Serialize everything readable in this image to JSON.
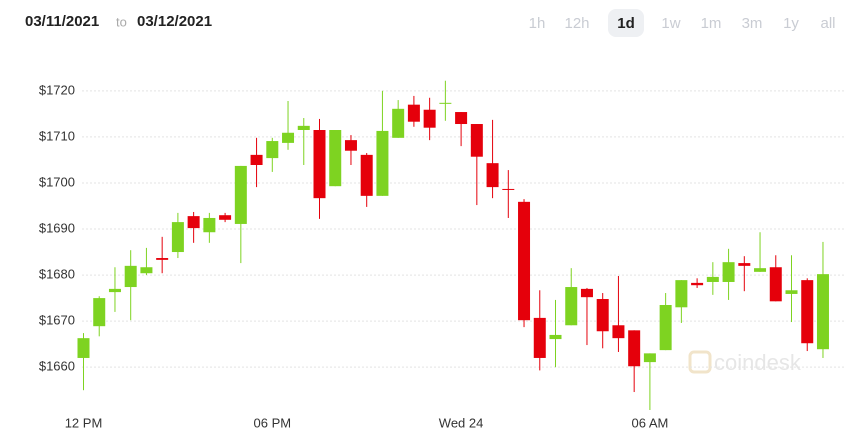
{
  "header": {
    "from": "03/11/2021",
    "separator": "to",
    "to": "03/12/2021",
    "ranges": [
      "1h",
      "12h",
      "1d",
      "1w",
      "1m",
      "3m",
      "1y",
      "all"
    ],
    "active_range": 2
  },
  "watermark": "coindesk",
  "chart_data": {
    "type": "candlestick",
    "x": [
      0,
      0.5,
      1,
      1.5,
      2,
      2.5,
      3,
      3.5,
      4,
      4.5,
      5,
      5.5,
      6,
      6.5,
      7,
      7.5,
      8,
      8.5,
      9,
      9.5,
      10,
      10.5,
      11,
      11.5,
      12,
      12.5,
      13,
      13.5,
      14,
      14.5,
      15,
      15.5,
      16,
      16.5,
      17,
      17.5,
      18,
      18.5,
      19,
      19.5,
      20,
      20.5,
      21,
      21.5,
      22,
      22.5,
      23,
      23.5
    ],
    "open": [
      1662,
      1668.9,
      1676.3,
      1677.4,
      1680.4,
      1683.7,
      1685,
      1692.8,
      1689.3,
      1693,
      1691.1,
      1706.1,
      1705.4,
      1708.7,
      1711.5,
      1711.5,
      1699.3,
      1709.3,
      1706.1,
      1697.2,
      1709.8,
      1717,
      1715.9,
      1717.2,
      1715.4,
      1712.8,
      1704.3,
      1698.7,
      1695.9,
      1670.7,
      1666.1,
      1669.1,
      1677,
      1674.8,
      1669.1,
      1668,
      1661.1,
      1663.7,
      1673,
      1678.3,
      1678.5,
      1678.5,
      1682.6,
      1680.7,
      1681.7,
      1675.9,
      1678.9,
      1663.9
    ],
    "high": [
      1667.4,
      1675.4,
      1681.7,
      1685.4,
      1685.9,
      1688.3,
      1693.5,
      1693.7,
      1693.5,
      1693.5,
      1703.7,
      1709.8,
      1709.8,
      1717.8,
      1714.1,
      1713.9,
      1711.5,
      1710.4,
      1706.5,
      1720,
      1718,
      1718.9,
      1718.5,
      1722.2,
      1715.4,
      1712.8,
      1713.7,
      1702.8,
      1696.5,
      1676.7,
      1674.6,
      1681.5,
      1677.2,
      1676.1,
      1679.8,
      1668,
      1663,
      1676.1,
      1678.9,
      1679.3,
      1682.8,
      1685.7,
      1684.1,
      1689.3,
      1684.3,
      1684.3,
      1679.3,
      1687.2
    ],
    "low": [
      1655,
      1666.7,
      1672,
      1670.2,
      1680,
      1680.4,
      1683.7,
      1687,
      1687,
      1691.5,
      1682.6,
      1699.1,
      1702.4,
      1707.2,
      1703.9,
      1692.2,
      1699.3,
      1703.9,
      1694.8,
      1697.2,
      1709.8,
      1712.2,
      1709.3,
      1713.5,
      1708,
      1695.2,
      1696.7,
      1692.4,
      1668.7,
      1659.3,
      1660,
      1669.1,
      1664.8,
      1664.1,
      1663.3,
      1654.6,
      1650.7,
      1663.7,
      1669.6,
      1677.2,
      1675.7,
      1674.6,
      1676.5,
      1680.7,
      1674.3,
      1669.8,
      1663.5,
      1662
    ],
    "close": [
      1666.3,
      1675,
      1677,
      1682,
      1681.7,
      1683.3,
      1691.5,
      1690.2,
      1692.4,
      1692,
      1703.7,
      1703.9,
      1709.1,
      1710.9,
      1712.4,
      1696.7,
      1711.5,
      1707,
      1697.2,
      1711.3,
      1716.1,
      1713.3,
      1712,
      1717.4,
      1712.8,
      1705.7,
      1699.1,
      1698.5,
      1670.2,
      1662,
      1667,
      1677.4,
      1675.2,
      1667.8,
      1666.3,
      1660.2,
      1663,
      1673.5,
      1678.9,
      1677.8,
      1679.6,
      1682.8,
      1682,
      1681.5,
      1674.3,
      1676.7,
      1665.2,
      1680.2
    ],
    "up_color": "#7ed321",
    "down_color": "#e5000b",
    "xlim": [
      -1.7,
      24.2
    ],
    "xticks": [
      {
        "value": 0,
        "label": "12 PM"
      },
      {
        "value": 6,
        "label": "06 PM"
      },
      {
        "value": 12,
        "label": "Wed 24"
      },
      {
        "value": 18,
        "label": "06 AM"
      }
    ],
    "ylim": [
      1650.7,
      1726.7
    ],
    "yticks": [
      {
        "value": 1660,
        "label": "$1660"
      },
      {
        "value": 1670,
        "label": "$1670"
      },
      {
        "value": 1680,
        "label": "$1680"
      },
      {
        "value": 1690,
        "label": "$1690"
      },
      {
        "value": 1700,
        "label": "$1700"
      },
      {
        "value": 1710,
        "label": "$1710"
      },
      {
        "value": 1720,
        "label": "$1720"
      }
    ],
    "grid": true
  }
}
